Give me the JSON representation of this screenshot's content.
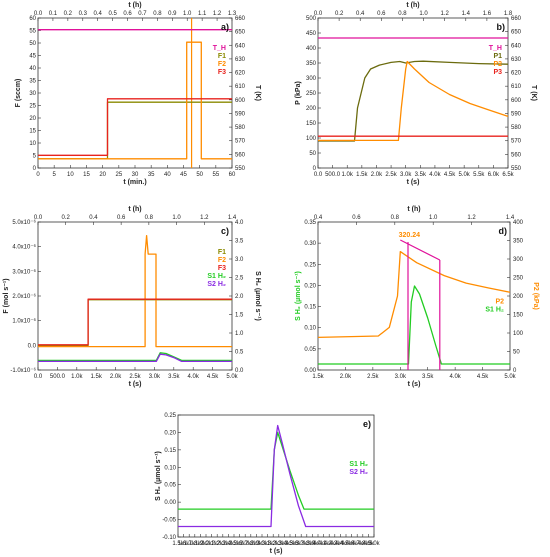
{
  "chart_data": [
    {
      "panel": "a)",
      "type": "line",
      "xlabel": "t (min.)",
      "xlim": [
        0,
        60
      ],
      "xticks": [
        0,
        5,
        10,
        15,
        20,
        25,
        30,
        35,
        40,
        45,
        50,
        55,
        60
      ],
      "x2label": "t (h)",
      "x2ticks": [
        "0.0",
        "0.1",
        "0.2",
        "0.3",
        "0.4",
        "0.5",
        "0.6",
        "0.7",
        "0.8",
        "0.9",
        "1.0",
        "1.1",
        "1.2",
        "1.3"
      ],
      "ylabel": "F (sccm)",
      "ylim": [
        -5,
        60
      ],
      "yticks": [
        0,
        5,
        10,
        15,
        20,
        25,
        30,
        35,
        40,
        45,
        50,
        55,
        60
      ],
      "y2label": "T (K)",
      "y2lim": [
        545,
        660
      ],
      "y2ticks": [
        550,
        560,
        570,
        580,
        590,
        600,
        610,
        620,
        630,
        640,
        650,
        660
      ],
      "marker": {
        "x": 47.5,
        "color": "#ff8c00"
      },
      "legend": [
        "T_H",
        "F1",
        "F2",
        "F3"
      ],
      "series": [
        {
          "name": "T_H",
          "color": "#e0119a",
          "axis": "y2",
          "points": [
            [
              0,
              651
            ],
            [
              60,
              651
            ]
          ]
        },
        {
          "name": "F1",
          "color": "#8a8a00",
          "axis": "y",
          "points": [
            [
              0,
              -1
            ],
            [
              21.5,
              -1
            ],
            [
              21.5,
              23.5
            ],
            [
              60,
              23.5
            ]
          ]
        },
        {
          "name": "F2",
          "color": "#ff8c00",
          "axis": "y",
          "points": [
            [
              0,
              -1
            ],
            [
              46,
              -1
            ],
            [
              46,
              49.5
            ],
            [
              50.5,
              49.5
            ],
            [
              50.5,
              -1
            ],
            [
              60,
              -1
            ]
          ]
        },
        {
          "name": "F3",
          "color": "#e8231e",
          "axis": "y",
          "points": [
            [
              0,
              0.5
            ],
            [
              21.5,
              0.5
            ],
            [
              21.5,
              25
            ],
            [
              60,
              25
            ]
          ]
        }
      ]
    },
    {
      "panel": "b)",
      "type": "line",
      "xlabel": "t (s)",
      "xlim": [
        0,
        6500
      ],
      "xticks": [
        "0.0",
        "500.0",
        "1.0k",
        "1.5k",
        "2.0k",
        "2.5k",
        "3.0k",
        "3.5k",
        "4.0k",
        "4.5k",
        "5.0k",
        "5.5k",
        "6.0k",
        "6.5k"
      ],
      "x2label": "t (h)",
      "x2ticks": [
        "0.0",
        "0.2",
        "0.4",
        "0.6",
        "0.8",
        "1.0",
        "1.2",
        "1.4",
        "1.6",
        "1.8"
      ],
      "ylabel": "P (kPa)",
      "ylim": [
        0,
        500
      ],
      "yticks": [
        0,
        50,
        100,
        150,
        200,
        250,
        300,
        350,
        400,
        450,
        500
      ],
      "y2label": "T (K)",
      "y2lim": [
        540,
        660
      ],
      "y2ticks": [
        550,
        560,
        570,
        580,
        590,
        600,
        610,
        620,
        630,
        640,
        650,
        660
      ],
      "legend": [
        "T_H",
        "P1",
        "P2",
        "P3"
      ],
      "series": [
        {
          "name": "T_H",
          "color": "#e0119a",
          "axis": "y2",
          "points": [
            [
              0,
              644
            ],
            [
              6500,
              644
            ]
          ]
        },
        {
          "name": "P1",
          "color": "#6b6b0e",
          "axis": "y",
          "points": [
            [
              0,
              90
            ],
            [
              1250,
              90
            ],
            [
              1350,
              200
            ],
            [
              1600,
              300
            ],
            [
              1800,
              330
            ],
            [
              2100,
              343
            ],
            [
              2500,
              352
            ],
            [
              2800,
              355
            ],
            [
              3000,
              350
            ],
            [
              3300,
              355
            ],
            [
              3600,
              356
            ],
            [
              4500,
              352
            ],
            [
              5500,
              348
            ],
            [
              6500,
              346
            ]
          ]
        },
        {
          "name": "P2",
          "color": "#ff8c00",
          "axis": "y",
          "points": [
            [
              0,
              92
            ],
            [
              2750,
              92
            ],
            [
              2850,
              200
            ],
            [
              3000,
              330
            ],
            [
              3050,
              355
            ],
            [
              3300,
              330
            ],
            [
              3800,
              285
            ],
            [
              4500,
              245
            ],
            [
              5200,
              215
            ],
            [
              5800,
              195
            ],
            [
              6500,
              172
            ]
          ]
        },
        {
          "name": "P3",
          "color": "#e8231e",
          "axis": "y",
          "points": [
            [
              0,
              106
            ],
            [
              6500,
              106
            ]
          ]
        }
      ]
    },
    {
      "panel": "c)",
      "type": "line",
      "xlabel": "t (s)",
      "xlim": [
        0,
        5000
      ],
      "xticks": [
        "0.0",
        "500.0",
        "1.0k",
        "1.5k",
        "2.0k",
        "2.5k",
        "3.0k",
        "3.5k",
        "4.0k",
        "4.5k",
        "5.0k"
      ],
      "x2label": "t (h)",
      "x2ticks": [
        "0.0",
        "0.2",
        "0.4",
        "0.6",
        "0.8",
        "1.0",
        "1.2",
        "1.4"
      ],
      "ylabel": "F (mol s⁻¹)",
      "ylim": [
        -1,
        5
      ],
      "yticks": [
        "-1.0x10⁻⁶",
        "0.0",
        "1.0x10⁻⁶",
        "2.0x10⁻⁶",
        "3.0x10⁻⁶",
        "4.0x10⁻⁶",
        "5.0x10⁻⁶"
      ],
      "y2label": "S H₂ (µmol s⁻¹)",
      "y2lim": [
        -0.3,
        4.0
      ],
      "y2ticks": [
        "0.0",
        "0.5",
        "1.0",
        "1.5",
        "2.0",
        "2.5",
        "3.0",
        "3.5",
        "4.0"
      ],
      "legend": [
        "F1",
        "F2",
        "F3",
        "S1 H₂",
        "S2 H₂"
      ],
      "series": [
        {
          "name": "F1",
          "color": "#8a8a00",
          "axis": "y",
          "points": [
            [
              0,
              -0.02
            ],
            [
              1290,
              -0.02
            ],
            [
              1290,
              1.85
            ],
            [
              5000,
              1.85
            ]
          ]
        },
        {
          "name": "F2",
          "color": "#ff8c00",
          "axis": "y",
          "points": [
            [
              0,
              -0.05
            ],
            [
              2760,
              -0.05
            ],
            [
              2760,
              3.7
            ],
            [
              2800,
              4.45
            ],
            [
              2840,
              3.7
            ],
            [
              3040,
              3.7
            ],
            [
              3040,
              -0.05
            ],
            [
              5000,
              -0.05
            ]
          ]
        },
        {
          "name": "F3",
          "color": "#e8231e",
          "axis": "y",
          "points": [
            [
              0,
              0.02
            ],
            [
              1290,
              0.02
            ],
            [
              1290,
              1.87
            ],
            [
              5000,
              1.87
            ]
          ]
        },
        {
          "name": "S1 H₂",
          "color": "#22cc22",
          "axis": "y2",
          "points": [
            [
              0,
              -0.02
            ],
            [
              3050,
              -0.02
            ],
            [
              3150,
              0.2
            ],
            [
              3300,
              0.18
            ],
            [
              3500,
              0.08
            ],
            [
              3700,
              -0.02
            ],
            [
              5000,
              -0.02
            ]
          ]
        },
        {
          "name": "S2 H₂",
          "color": "#8a2be2",
          "axis": "y2",
          "points": [
            [
              0,
              -0.05
            ],
            [
              3050,
              -0.05
            ],
            [
              3150,
              0.16
            ],
            [
              3300,
              0.14
            ],
            [
              3500,
              0.06
            ],
            [
              3700,
              -0.05
            ],
            [
              5000,
              -0.05
            ]
          ]
        }
      ]
    },
    {
      "panel": "d)",
      "type": "line",
      "xlabel": "t (s)",
      "xlim": [
        1500,
        5000
      ],
      "xticks": [
        "1.5k",
        "2.0k",
        "2.5k",
        "3.0k",
        "3.5k",
        "4.0k",
        "4.5k",
        "5.0k"
      ],
      "x2label": "t (h)",
      "x2ticks": [
        "0.4",
        "0.6",
        "0.8",
        "1.0",
        "1.2",
        "1.4"
      ],
      "ylabel": "S H₂ (µmol s⁻¹)",
      "ylim": [
        -0.02,
        0.35
      ],
      "yticks": [
        "0.00",
        "0.05",
        "0.10",
        "0.15",
        "0.20",
        "0.25",
        "0.30",
        "0.35"
      ],
      "y2label": "P2 (kPa)",
      "y2lim": [
        0,
        400
      ],
      "y2ticks": [
        0,
        50,
        100,
        150,
        200,
        250,
        300,
        350,
        400
      ],
      "annotation": "320.24",
      "legend": [
        "P2",
        "S1 H₂"
      ],
      "series": [
        {
          "name": "P2",
          "color": "#ff8c00",
          "axis": "y2",
          "points": [
            [
              1500,
              88
            ],
            [
              2600,
              92
            ],
            [
              2800,
              115
            ],
            [
              2950,
              200
            ],
            [
              3000,
              320
            ],
            [
              3300,
              290
            ],
            [
              3800,
              255
            ],
            [
              4200,
              235
            ],
            [
              4600,
              222
            ],
            [
              5000,
              210
            ]
          ]
        },
        {
          "name": "S1 H₂",
          "color": "#22cc22",
          "axis": "y",
          "points": [
            [
              1500,
              -0.005
            ],
            [
              3150,
              -0.005
            ],
            [
              3200,
              0.15
            ],
            [
              3260,
              0.19
            ],
            [
              3350,
              0.17
            ],
            [
              3500,
              0.11
            ],
            [
              3650,
              0.04
            ],
            [
              3750,
              -0.005
            ],
            [
              5000,
              -0.005
            ]
          ]
        }
      ],
      "segments": [
        {
          "color": "#e0119a",
          "points": [
            [
              3000,
              0.305
            ],
            [
              3720,
              0.255
            ]
          ]
        },
        {
          "color": "#e0119a",
          "points": [
            [
              3140,
              -0.02
            ],
            [
              3140,
              0.3
            ]
          ]
        },
        {
          "color": "#e0119a",
          "points": [
            [
              3720,
              -0.02
            ],
            [
              3720,
              0.255
            ]
          ]
        }
      ]
    },
    {
      "panel": "e)",
      "type": "line",
      "xlabel": "t (s)",
      "xlim": [
        1500,
        5000
      ],
      "xticks": [
        "1.5k",
        "1.6k",
        "1.7k",
        "1.8k",
        "1.9k",
        "2.0k",
        "2.1k",
        "2.2k",
        "2.3k",
        "2.4k",
        "2.5k",
        "2.6k",
        "2.7k",
        "2.8k",
        "2.9k",
        "3.0k",
        "3.1k",
        "3.2k",
        "3.3k",
        "3.4k",
        "3.5k",
        "3.6k",
        "3.7k",
        "3.8k",
        "3.9k",
        "4.0k",
        "4.1k",
        "4.2k",
        "4.3k",
        "4.4k",
        "4.5k",
        "4.6k",
        "4.7k",
        "4.8k",
        "4.9k",
        "5.0k"
      ],
      "ylabel": "S H₂ (µmol s⁻¹)",
      "ylim": [
        -0.1,
        0.25
      ],
      "yticks": [
        "-0.10",
        "-0.05",
        "0.00",
        "0.05",
        "0.10",
        "0.15",
        "0.20",
        "0.25"
      ],
      "legend": [
        "S1 H₂",
        "S2 H₂"
      ],
      "series": [
        {
          "name": "S1 H₂",
          "color": "#22cc22",
          "points": [
            [
              1500,
              -0.02
            ],
            [
              3160,
              -0.02
            ],
            [
              3220,
              0.15
            ],
            [
              3280,
              0.2
            ],
            [
              3360,
              0.16
            ],
            [
              3500,
              0.09
            ],
            [
              3650,
              0.02
            ],
            [
              3750,
              -0.02
            ],
            [
              5000,
              -0.02
            ]
          ]
        },
        {
          "name": "S2 H₂",
          "color": "#8a2be2",
          "points": [
            [
              1500,
              -0.07
            ],
            [
              3160,
              -0.07
            ],
            [
              3220,
              0.15
            ],
            [
              3280,
              0.22
            ],
            [
              3360,
              0.17
            ],
            [
              3500,
              0.08
            ],
            [
              3650,
              -0.01
            ],
            [
              3780,
              -0.07
            ],
            [
              5000,
              -0.07
            ]
          ]
        }
      ]
    }
  ]
}
